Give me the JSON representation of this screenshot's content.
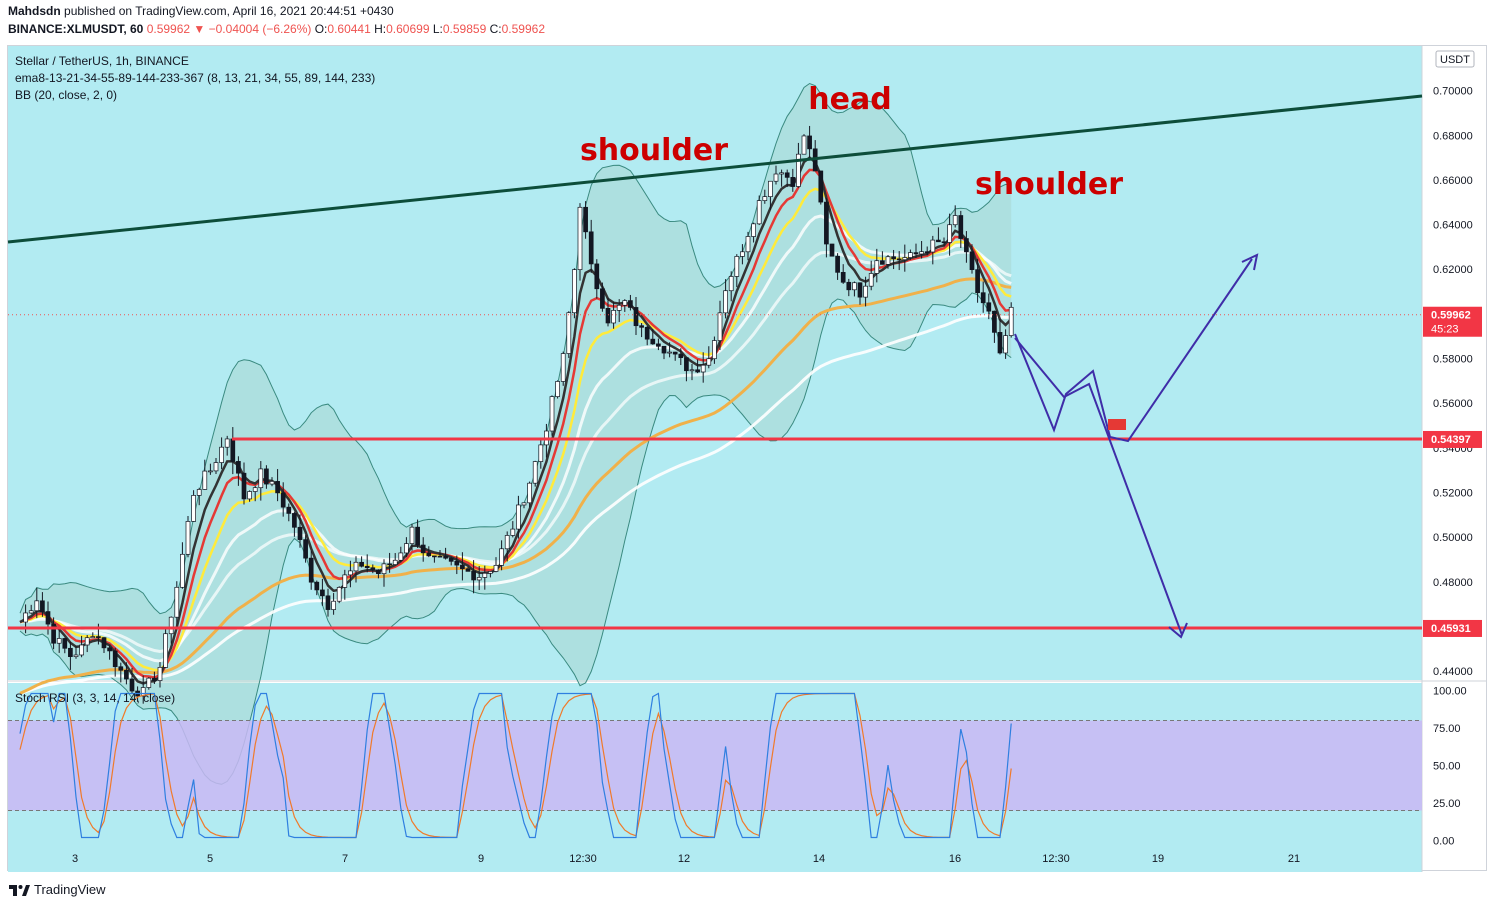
{
  "header": {
    "user": "Mahdsdn",
    "published_text": "published on TradingView.com, April 16, 2021 20:44:51 +0430",
    "symbol": "BINANCE:XLMUSDT, 60",
    "change": "0.59962 ▼ −0.04004 (−6.26%)",
    "o_label": "O:",
    "o": "0.60441",
    "h_label": "H:",
    "h": "0.60699",
    "l_label": "L:",
    "l": "0.59859",
    "c_label": "C:",
    "c": "0.59962"
  },
  "legend": {
    "title": "Stellar / TetherUS, 1h, BINANCE",
    "ema": "ema8-13-21-34-55-89-144-233-367 (8, 13, 21, 34, 55, 89, 144, 233)",
    "bb": "BB (20, close, 2, 0)",
    "stoch": "Stoch RSI (3, 3, 14, 14, close)"
  },
  "footer": {
    "brand": "TradingView"
  },
  "colors": {
    "bg": "#b2ebf2",
    "stoch_band": "#c9b8f5",
    "trendline": "#0d4d3a",
    "hline": "#f23645",
    "projection": "#3f2da8",
    "annotation": "#cc0000",
    "up_candle": "#ffffff",
    "down_candle": "#131722",
    "ema_fast": "#e53935",
    "ema_yellow": "#ffeb3b",
    "ema_orange": "#f0b14a",
    "stoch_k": "#2f7fe0",
    "stoch_d": "#f07a2a"
  },
  "chart_data": {
    "type": "candlestick",
    "title": "Stellar / TetherUS, 1h, BINANCE",
    "currency": "USDT",
    "ylim": [
      0.436,
      0.72
    ],
    "y_ticks": [
      "0.70000",
      "0.68000",
      "0.66000",
      "0.64000",
      "0.62000",
      "0.60000",
      "0.58000",
      "0.56000",
      "0.54000",
      "0.52000",
      "0.50000",
      "0.48000",
      "0.46000",
      "0.44000"
    ],
    "x_ticks": [
      "3",
      "5",
      "7",
      "9",
      "12:30",
      "12",
      "14",
      "16",
      "12:30",
      "19",
      "21"
    ],
    "price_labels": [
      {
        "value": 0.59962,
        "text": "0.59962",
        "sub": "45:23"
      },
      {
        "value": 0.54397,
        "text": "0.54397"
      },
      {
        "value": 0.45931,
        "text": "0.45931"
      }
    ],
    "horizontal_levels": [
      0.54397,
      0.45931
    ],
    "annotations": [
      "head",
      "shoulder",
      "shoulder"
    ],
    "price_path": [
      [
        0,
        0.462
      ],
      [
        3,
        0.473
      ],
      [
        6,
        0.455
      ],
      [
        9,
        0.447
      ],
      [
        11,
        0.45
      ],
      [
        13,
        0.458
      ],
      [
        15,
        0.452
      ],
      [
        18,
        0.44
      ],
      [
        20,
        0.433
      ],
      [
        22,
        0.43
      ],
      [
        25,
        0.442
      ],
      [
        28,
        0.478
      ],
      [
        31,
        0.52
      ],
      [
        34,
        0.53
      ],
      [
        37,
        0.545
      ],
      [
        40,
        0.518
      ],
      [
        43,
        0.528
      ],
      [
        46,
        0.52
      ],
      [
        49,
        0.505
      ],
      [
        52,
        0.482
      ],
      [
        55,
        0.47
      ],
      [
        58,
        0.482
      ],
      [
        61,
        0.488
      ],
      [
        64,
        0.484
      ],
      [
        67,
        0.49
      ],
      [
        70,
        0.503
      ],
      [
        73,
        0.49
      ],
      [
        76,
        0.488
      ],
      [
        79,
        0.485
      ],
      [
        82,
        0.483
      ],
      [
        85,
        0.488
      ],
      [
        88,
        0.505
      ],
      [
        91,
        0.525
      ],
      [
        94,
        0.55
      ],
      [
        97,
        0.58
      ],
      [
        99,
        0.62
      ],
      [
        100,
        0.65
      ],
      [
        102,
        0.62
      ],
      [
        105,
        0.598
      ],
      [
        108,
        0.605
      ],
      [
        111,
        0.592
      ],
      [
        114,
        0.588
      ],
      [
        117,
        0.58
      ],
      [
        120,
        0.575
      ],
      [
        123,
        0.58
      ],
      [
        126,
        0.612
      ],
      [
        129,
        0.63
      ],
      [
        132,
        0.65
      ],
      [
        135,
        0.665
      ],
      [
        138,
        0.66
      ],
      [
        140,
        0.68
      ],
      [
        142,
        0.665
      ],
      [
        144,
        0.63
      ],
      [
        147,
        0.615
      ],
      [
        150,
        0.61
      ],
      [
        153,
        0.625
      ],
      [
        156,
        0.625
      ],
      [
        159,
        0.625
      ],
      [
        162,
        0.63
      ],
      [
        165,
        0.632
      ],
      [
        167,
        0.643
      ],
      [
        169,
        0.625
      ],
      [
        171,
        0.61
      ],
      [
        173,
        0.6
      ],
      [
        175,
        0.58
      ],
      [
        177,
        0.6
      ]
    ],
    "stoch_rsi": {
      "ylim": [
        -5,
        105
      ],
      "y_ticks": [
        "100.00",
        "75.00",
        "50.00",
        "25.00",
        "0.00"
      ],
      "band": [
        20,
        80
      ],
      "k_last": 78,
      "d_last": 48
    }
  }
}
